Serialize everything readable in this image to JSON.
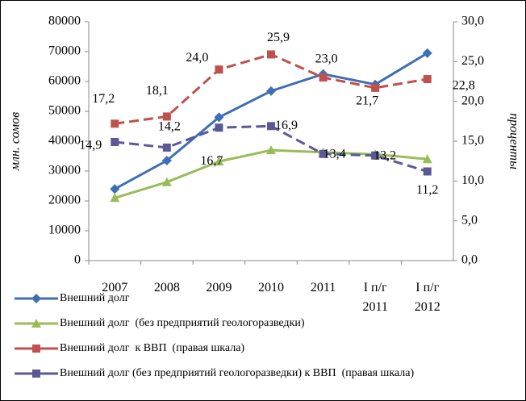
{
  "chart_data": {
    "type": "line",
    "categories": [
      "2007",
      "2008",
      "2009",
      "2010",
      "2011",
      "I п/г 2011",
      "I п/г 2012"
    ],
    "y_label": "млн. сомов",
    "y2_label": "проценты",
    "ylim": [
      0,
      80000
    ],
    "yticks": [
      0,
      10000,
      20000,
      30000,
      40000,
      50000,
      60000,
      70000,
      80000
    ],
    "y2lim": [
      0,
      30
    ],
    "y2ticks": [
      {
        "value": 0,
        "label": "0,0"
      },
      {
        "value": 5,
        "label": "5,0"
      },
      {
        "value": 10,
        "label": "10,0"
      },
      {
        "value": 15,
        "label": "15,0"
      },
      {
        "value": 20,
        "label": "20,0"
      },
      {
        "value": 25,
        "label": "25,0"
      },
      {
        "value": 30,
        "label": "30,0"
      }
    ],
    "series": [
      {
        "name": "Внешний долг",
        "color": "#3e6fb5",
        "marker": "diamond",
        "dashed": false,
        "values": [
          24000,
          33500,
          48000,
          56800,
          62500,
          59000,
          69500
        ]
      },
      {
        "name": "Внешний долг  (без предприятий геологоразведки)",
        "color": "#9bbb59",
        "marker": "triangle",
        "dashed": false,
        "values": [
          21000,
          26300,
          33200,
          37000,
          36300,
          35600,
          34000
        ]
      },
      {
        "name": "Внешний долг  к ВВП  (правая шкала)",
        "color": "#c0504d",
        "marker": "square",
        "dashed": true,
        "axis": "y2",
        "values": [
          17.2,
          18.1,
          24.0,
          25.9,
          23.0,
          21.7,
          22.8
        ],
        "value_labels": [
          "17,2",
          "18,1",
          "24,0",
          "25,9",
          "23,0",
          "21,7",
          "22,8"
        ]
      },
      {
        "name": "Внешний долг (без предприятий геологоразведки) к ВВП  (правая шкала)",
        "color": "#5b5896",
        "marker": "square",
        "dashed": true,
        "axis": "y2",
        "values": [
          14.9,
          14.2,
          16.7,
          16.9,
          13.4,
          13.2,
          11.2
        ],
        "value_labels": [
          "14,9",
          "14,2",
          "16,7",
          "16,9",
          "13,4",
          "13,2",
          "11,2"
        ]
      }
    ]
  }
}
